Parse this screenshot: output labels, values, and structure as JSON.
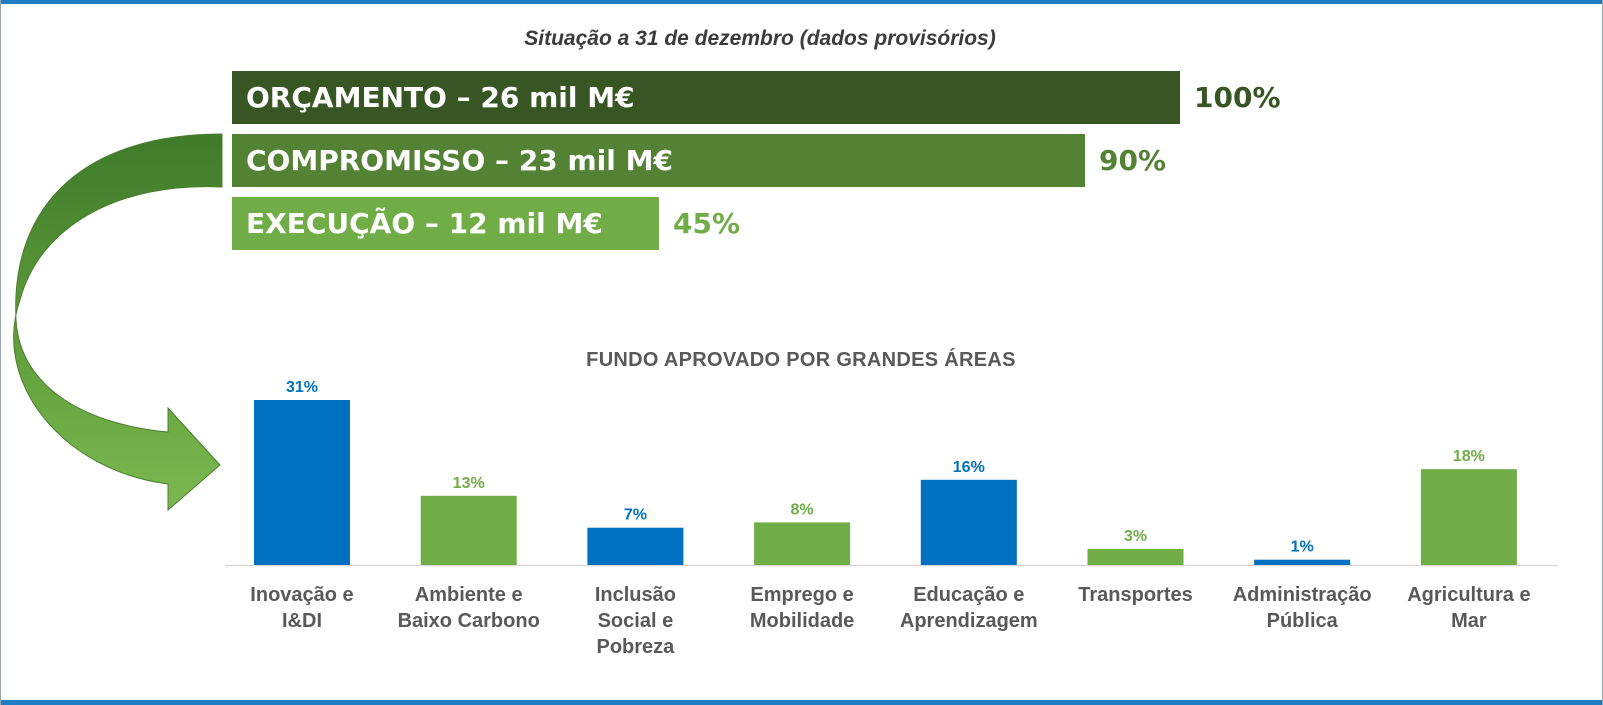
{
  "subtitle": "Situação a 31 de dezembro (dados provisórios)",
  "summary_bars": [
    {
      "label": "ORÇAMENTO – 26 mil M€",
      "percent_label": "100%",
      "share": 100,
      "color": "#375623"
    },
    {
      "label": "COMPROMISSO – 23 mil M€",
      "percent_label": "90%",
      "share": 90,
      "color": "#548235"
    },
    {
      "label": "EXECUÇÃO – 12 mil M€",
      "percent_label": "45%",
      "share": 45,
      "color": "#70ad47"
    }
  ],
  "colors": {
    "blue": "#0070c0",
    "green": "#70ad47",
    "axis": "#d9d9d9",
    "arrow": "#5a9a3a"
  },
  "chart_data": {
    "type": "bar",
    "title": "FUNDO APROVADO POR GRANDES ÁREAS",
    "categories": [
      [
        "Inovação e",
        "I&DI"
      ],
      [
        "Ambiente e",
        "Baixo Carbono"
      ],
      [
        "Inclusão",
        "Social e",
        "Pobreza"
      ],
      [
        "Emprego e",
        "Mobilidade"
      ],
      [
        "Educação e",
        "Aprendizagem"
      ],
      [
        "Transportes"
      ],
      [
        "Administração",
        "Pública"
      ],
      [
        "Agricultura e",
        "Mar"
      ]
    ],
    "values": [
      31,
      13,
      7,
      8,
      16,
      3,
      1,
      18
    ],
    "value_labels": [
      "31%",
      "13%",
      "7%",
      "8%",
      "16%",
      "3%",
      "1%",
      "18%"
    ],
    "bar_colors": [
      "blue",
      "green",
      "blue",
      "green",
      "blue",
      "green",
      "blue",
      "green"
    ],
    "ylim": [
      0,
      31
    ],
    "grid": false,
    "legend": "none"
  }
}
